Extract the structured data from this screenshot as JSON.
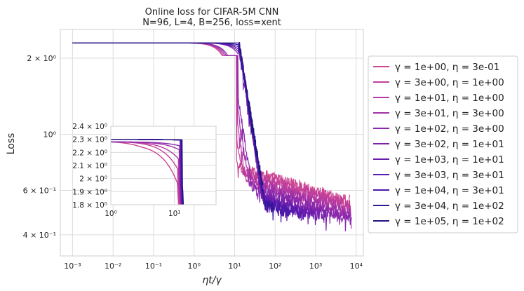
{
  "chart_data": {
    "type": "line",
    "title_line1": "Online loss for CIFAR-5M CNN",
    "title_line2": "N=96, L=4, B=256, loss=xent",
    "xlabel": "ηt/γ",
    "ylabel": "Loss",
    "xscale": "log",
    "yscale": "log",
    "xlim": [
      0.0005,
      15000
    ],
    "ylim": [
      0.33,
      2.6
    ],
    "x_ticks": [
      {
        "value": 0.001,
        "label": "10⁻³"
      },
      {
        "value": 0.01,
        "label": "10⁻²"
      },
      {
        "value": 0.1,
        "label": "10⁻¹"
      },
      {
        "value": 1,
        "label": "10⁰"
      },
      {
        "value": 10,
        "label": "10¹"
      },
      {
        "value": 100,
        "label": "10²"
      },
      {
        "value": 1000,
        "label": "10³"
      },
      {
        "value": 10000,
        "label": "10⁴"
      }
    ],
    "y_ticks": [
      {
        "value": 2.0,
        "label": "2 × 10⁰"
      },
      {
        "value": 1.0,
        "label": "10⁰"
      },
      {
        "value": 0.6,
        "label": "6 × 10⁻¹"
      },
      {
        "value": 0.4,
        "label": "4 × 10⁻¹"
      }
    ],
    "series": [
      {
        "name": "γ = 1e+00, η = 3e-01",
        "color": "#cc4592",
        "start_loss": 2.3,
        "final_loss": 0.55,
        "drop_x": 11.0,
        "end_x": 7000
      },
      {
        "name": "γ = 3e+00, η = 1e+00",
        "color": "#c2409a",
        "start_loss": 2.3,
        "final_loss": 0.53,
        "drop_x": 11.3,
        "end_x": 7200
      },
      {
        "name": "γ = 1e+01, η = 1e+00",
        "color": "#b43aa3",
        "start_loss": 2.3,
        "final_loss": 0.51,
        "drop_x": 11.6,
        "end_x": 7400
      },
      {
        "name": "γ = 3e+01, η = 3e+00",
        "color": "#a032a8",
        "start_loss": 2.3,
        "final_loss": 0.49,
        "drop_x": 11.9,
        "end_x": 7500
      },
      {
        "name": "γ = 1e+02, η = 3e+00",
        "color": "#8a28ac",
        "start_loss": 2.3,
        "final_loss": 0.47,
        "drop_x": 12.1,
        "end_x": 7600
      },
      {
        "name": "γ = 3e+02, η = 1e+01",
        "color": "#7a22ad",
        "start_loss": 2.3,
        "final_loss": 0.45,
        "drop_x": 12.3,
        "end_x": 2000
      },
      {
        "name": "γ = 1e+03, η = 1e+01",
        "color": "#6a1dae",
        "start_loss": 2.3,
        "final_loss": 0.44,
        "drop_x": 12.5,
        "end_x": 1000
      },
      {
        "name": "γ = 3e+03, η = 3e+01",
        "color": "#5a1aae",
        "start_loss": 2.3,
        "final_loss": 0.43,
        "drop_x": 12.7,
        "end_x": 500
      },
      {
        "name": "γ = 1e+04, η = 3e+01",
        "color": "#4a18a8",
        "start_loss": 2.3,
        "final_loss": 0.42,
        "drop_x": 12.9,
        "end_x": 250
      },
      {
        "name": "γ = 3e+04, η = 1e+02",
        "color": "#34169c",
        "start_loss": 2.3,
        "final_loss": 0.42,
        "drop_x": 13.0,
        "end_x": 90
      },
      {
        "name": "γ = 1e+05, η = 1e+02",
        "color": "#1f1480",
        "start_loss": 2.3,
        "final_loss": 0.41,
        "drop_x": 13.2,
        "end_x": 50
      }
    ],
    "inset": {
      "xlim": [
        1,
        45
      ],
      "ylim": [
        1.8,
        2.4
      ],
      "x_ticks": [
        {
          "value": 1,
          "label": "10⁰"
        },
        {
          "value": 10,
          "label": "10¹"
        }
      ],
      "y_ticks": [
        {
          "value": 2.4,
          "label": "2.4 × 10⁰"
        },
        {
          "value": 2.3,
          "label": "2.3 × 10⁰"
        },
        {
          "value": 2.2,
          "label": "2.2 × 10⁰"
        },
        {
          "value": 2.1,
          "label": "2.1 × 10⁰"
        },
        {
          "value": 2.0,
          "label": "2 × 10⁰"
        },
        {
          "value": 1.9,
          "label": "1.9 × 10⁰"
        },
        {
          "value": 1.8,
          "label": "1.8 × 10⁰"
        }
      ]
    },
    "legend_position": "right"
  }
}
